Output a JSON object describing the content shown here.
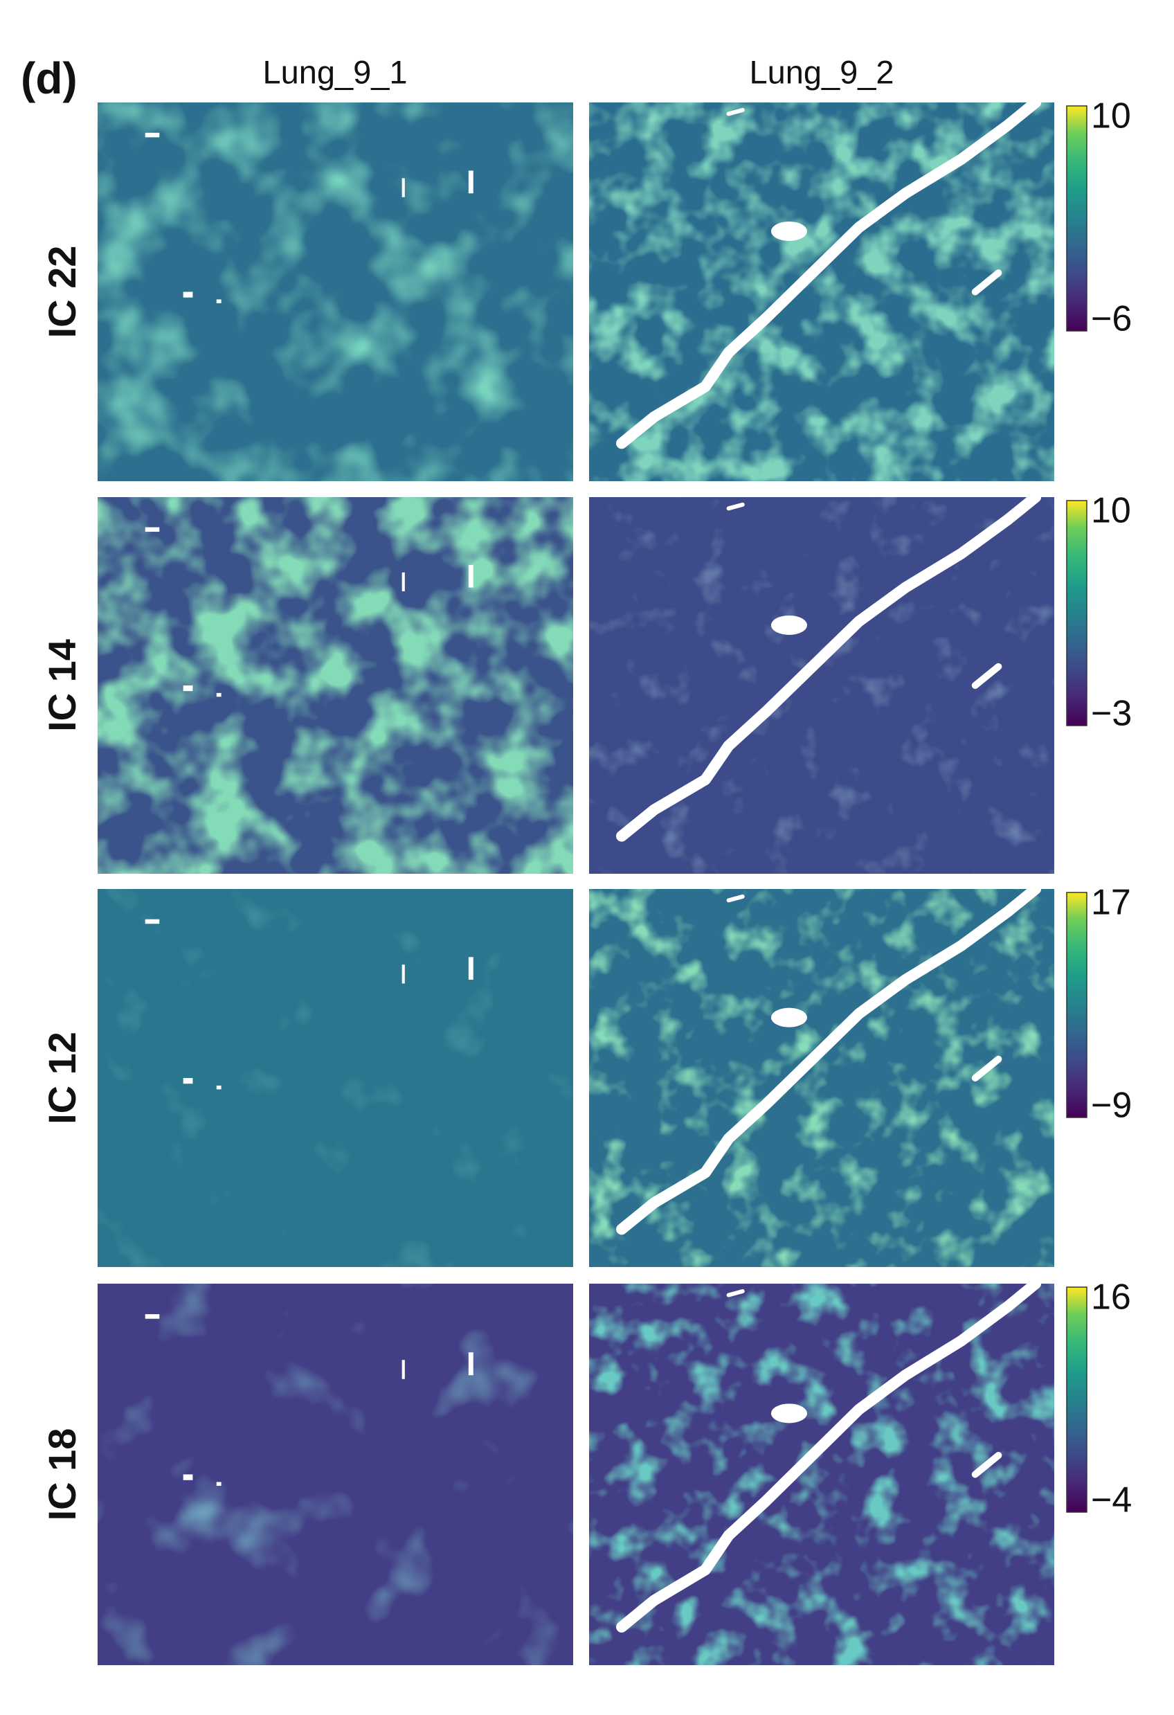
{
  "panel_label": "(d)",
  "columns": [
    "Lung_9_1",
    "Lung_9_2"
  ],
  "rows": [
    {
      "label": "IC 22",
      "colorbar": {
        "max": "10",
        "min": "−6"
      }
    },
    {
      "label": "IC 14",
      "colorbar": {
        "max": "10",
        "min": "−3"
      }
    },
    {
      "label": "IC 12",
      "colorbar": {
        "max": "17",
        "min": "−9"
      }
    },
    {
      "label": "IC 18",
      "colorbar": {
        "max": "16",
        "min": "−4"
      }
    }
  ]
}
